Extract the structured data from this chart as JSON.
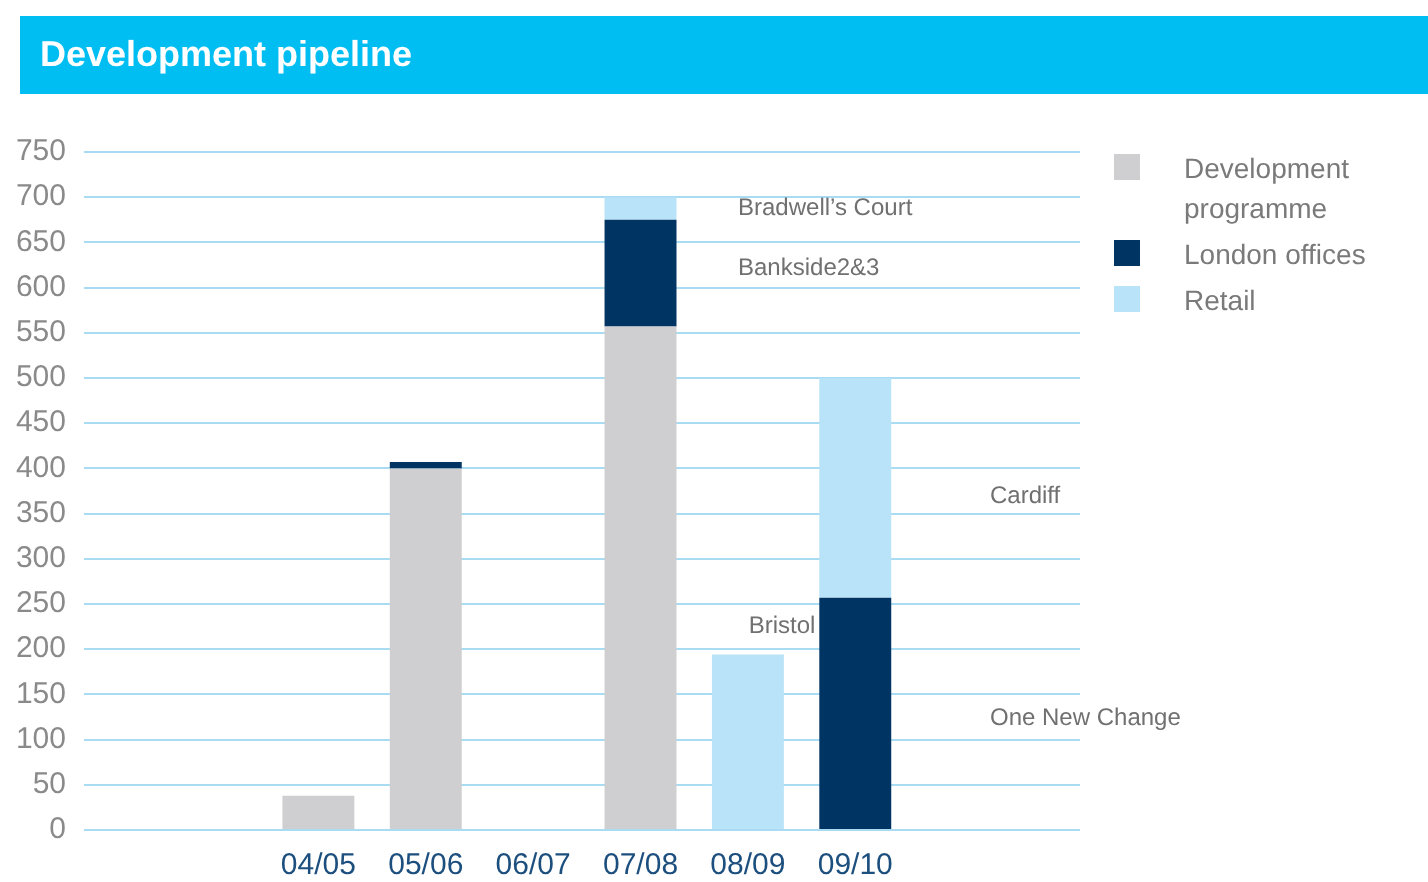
{
  "chart_data": {
    "type": "bar",
    "title": "Development pipeline",
    "categories": [
      "04/05",
      "05/06",
      "06/07",
      "07/08",
      "08/09",
      "09/10"
    ],
    "series": [
      {
        "name": "Development programme",
        "color": "#cfcfd1",
        "values": [
          38,
          400,
          null,
          557,
          null,
          null
        ]
      },
      {
        "name": "London offices",
        "color": "#003462",
        "values": [
          null,
          7,
          null,
          118,
          null,
          257
        ]
      },
      {
        "name": "Retail",
        "color": "#b8e3f8",
        "values": [
          null,
          null,
          null,
          25,
          194,
          243
        ]
      }
    ],
    "stacked": true,
    "ylim": [
      0,
      750
    ],
    "yticks": [
      0,
      50,
      100,
      150,
      200,
      250,
      300,
      350,
      400,
      450,
      500,
      550,
      600,
      650,
      700,
      750
    ],
    "grid": "y",
    "legend": "top right",
    "annotations": [
      "Bradwell’s Court",
      "Bankside2&3",
      "Bristol",
      "Cardiff",
      "One New Change"
    ]
  }
}
